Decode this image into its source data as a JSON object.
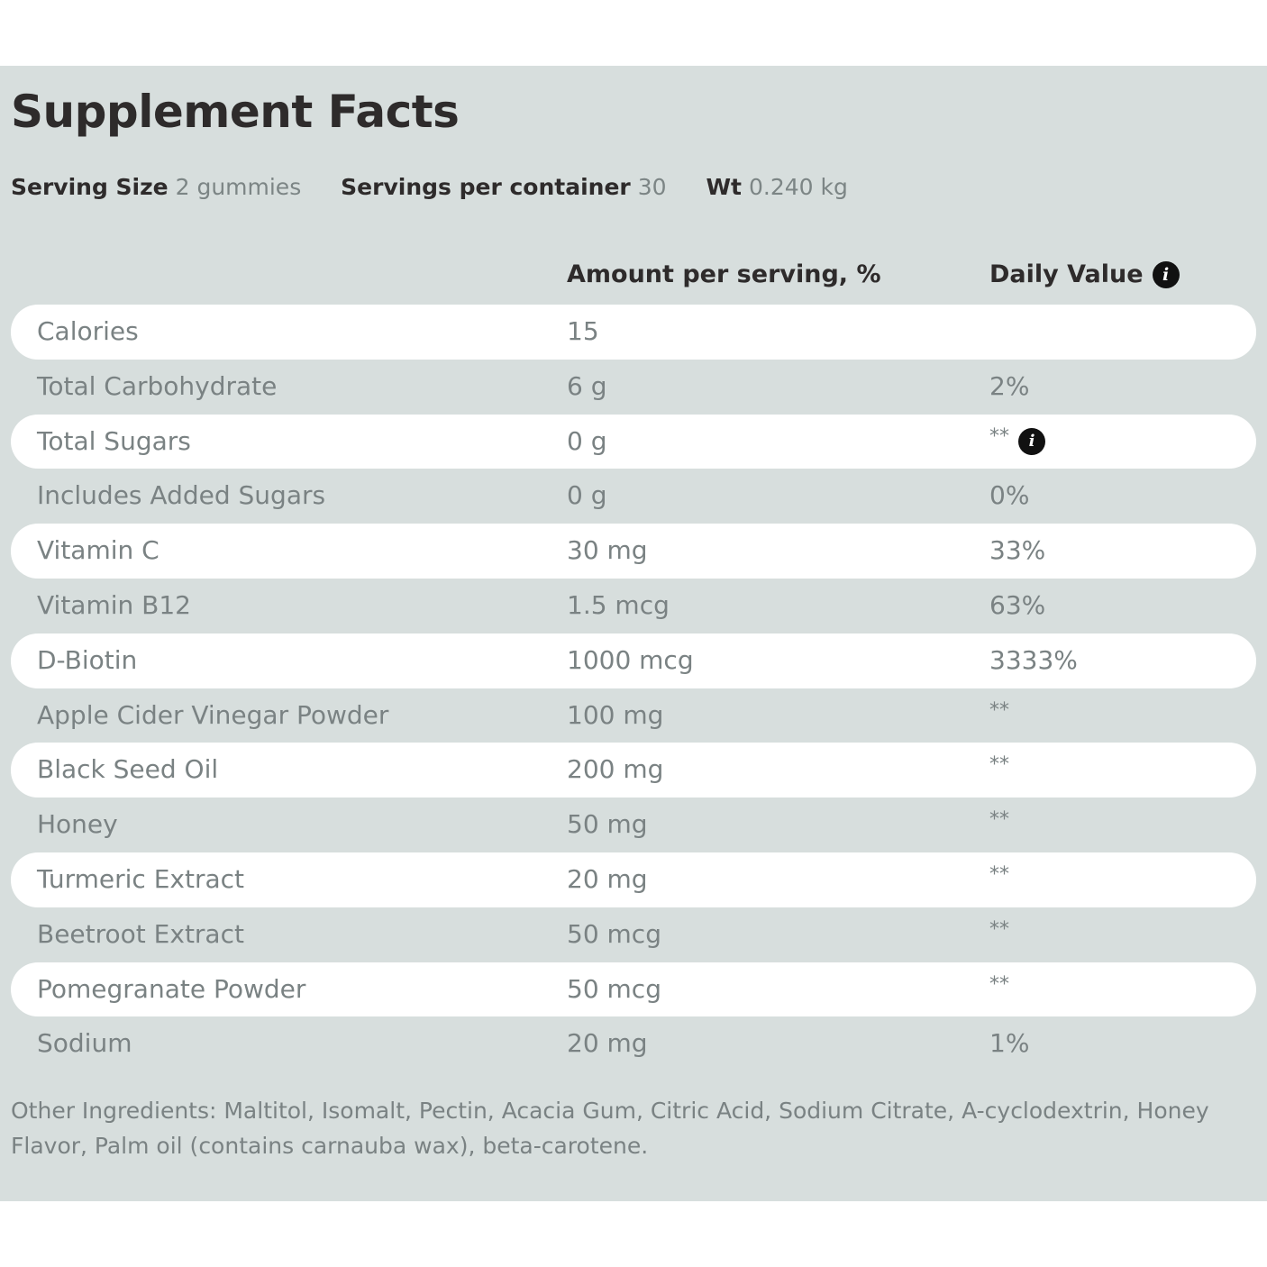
{
  "title": "Supplement Facts",
  "serving": {
    "serving_size_label": "Serving Size",
    "serving_size_value": "2 gummies",
    "servings_per_container_label": "Servings per container",
    "servings_per_container_value": "30",
    "weight_label": "Wt",
    "weight_value": "0.240 kg"
  },
  "columns": {
    "amount": "Amount per serving, %",
    "daily_value": "Daily Value",
    "daily_value_icon": "info-icon"
  },
  "rows": [
    {
      "name": "Calories",
      "amount": "15",
      "dv": "",
      "info": false
    },
    {
      "name": "Total Carbohydrate",
      "amount": "6 g",
      "dv": "2%",
      "info": false
    },
    {
      "name": "Total Sugars",
      "amount": "0 g",
      "dv": "**",
      "info": true
    },
    {
      "name": "Includes Added Sugars",
      "amount": "0 g",
      "dv": "0%",
      "info": false
    },
    {
      "name": "Vitamin C",
      "amount": "30 mg",
      "dv": "33%",
      "info": false
    },
    {
      "name": "Vitamin B12",
      "amount": "1.5 mcg",
      "dv": "63%",
      "info": false
    },
    {
      "name": "D-Biotin",
      "amount": "1000 mcg",
      "dv": "3333%",
      "info": false
    },
    {
      "name": "Apple Cider Vinegar Powder",
      "amount": "100 mg",
      "dv": "**",
      "info": false
    },
    {
      "name": "Black Seed Oil",
      "amount": "200 mg",
      "dv": "**",
      "info": false
    },
    {
      "name": "Honey",
      "amount": "50 mg",
      "dv": "**",
      "info": false
    },
    {
      "name": "Turmeric Extract",
      "amount": "20 mg",
      "dv": "**",
      "info": false
    },
    {
      "name": "Beetroot Extract",
      "amount": "50 mcg",
      "dv": "**",
      "info": false
    },
    {
      "name": "Pomegranate Powder",
      "amount": "50 mcg",
      "dv": "**",
      "info": false
    },
    {
      "name": "Sodium",
      "amount": "20 mg",
      "dv": "1%",
      "info": false
    }
  ],
  "other_ingredients": "Other Ingredients: Maltitol, Isomalt, Pectin, Acacia Gum, Citric Acid, Sodium Citrate, A-cyclodextrin, Honey Flavor, Palm oil (contains carnauba wax), beta-carotene.",
  "colors": {
    "panel_background": "#d7dedd",
    "stripe": "#ffffff",
    "heading_text": "#2e2b2b",
    "body_text": "#7a8283"
  }
}
